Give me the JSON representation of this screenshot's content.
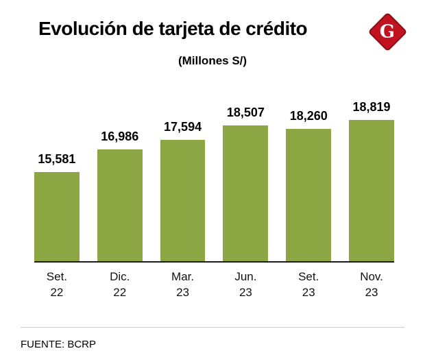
{
  "header": {
    "title": "Evolución de tarjeta de crédito",
    "logo_letter": "G",
    "logo_color": "#c0121f"
  },
  "chart_data": {
    "type": "bar",
    "title": "Evolución de tarjeta de crédito",
    "subtitle": "(Millones S/)",
    "categories": [
      [
        "Set.",
        "22"
      ],
      [
        "Dic.",
        "22"
      ],
      [
        "Mar.",
        "23"
      ],
      [
        "Jun.",
        "23"
      ],
      [
        "Set.",
        "23"
      ],
      [
        "Nov.",
        "23"
      ]
    ],
    "values": [
      15581,
      16986,
      17594,
      18507,
      18260,
      18819
    ],
    "value_labels": [
      "15,581",
      "16,986",
      "17,594",
      "18,507",
      "18,260",
      "18,819"
    ],
    "bar_color": "#8ca644",
    "ylim": [
      10000,
      19000
    ],
    "grid": false,
    "legend": false
  },
  "footer": {
    "source": "FUENTE: BCRP"
  }
}
